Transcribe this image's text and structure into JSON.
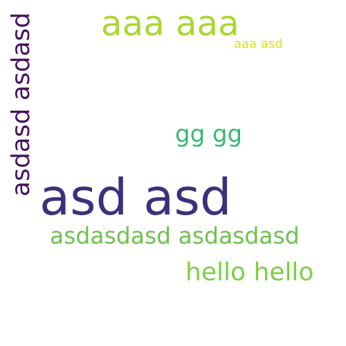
{
  "words": [
    {
      "id": "asd-asd",
      "text": "asd asd",
      "color": "#3e2f7e"
    },
    {
      "id": "aaa-aaa",
      "text": "aaa aaa",
      "color": "#a9d633"
    },
    {
      "id": "aaa-asd",
      "text": "aaa asd",
      "color": "#d8e117"
    },
    {
      "id": "gg-gg",
      "text": "gg gg",
      "color": "#38b874"
    },
    {
      "id": "asdasdasd",
      "text": "asdasdasd asdasdasd",
      "color": "#6cc24f"
    },
    {
      "id": "hello",
      "text": "hello hello",
      "color": "#7ccf44"
    },
    {
      "id": "asdasd",
      "text": "asdasd asdasd",
      "color": "#46125f"
    }
  ]
}
